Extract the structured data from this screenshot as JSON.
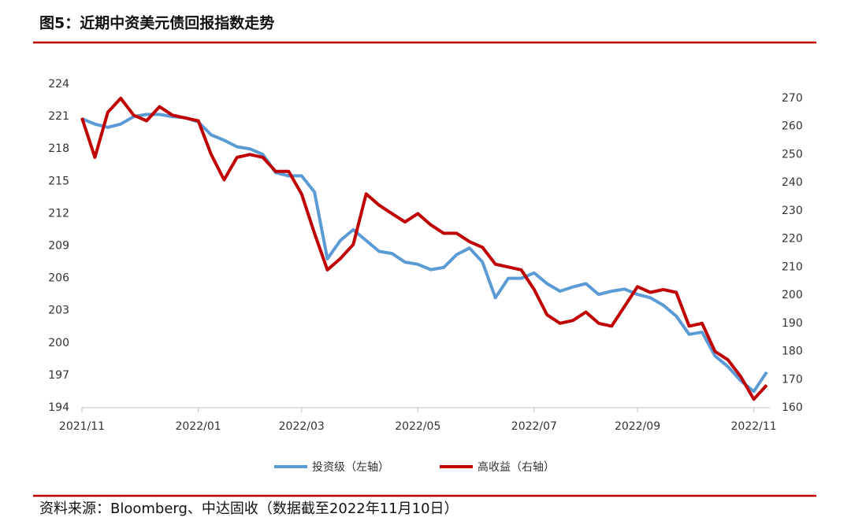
{
  "chart_data": {
    "type": "line",
    "title": "图5：近期中资美元债回报指数走势",
    "source": "资料来源：Bloomberg、中达固收（数据截至2022年11月10日）",
    "categories": [
      "2021/11",
      null,
      null,
      null,
      null,
      null,
      null,
      null,
      null,
      "2022/01",
      null,
      null,
      null,
      null,
      null,
      null,
      null,
      "2022/03",
      null,
      null,
      null,
      null,
      null,
      null,
      null,
      null,
      "2022/05",
      null,
      null,
      null,
      null,
      null,
      null,
      null,
      null,
      "2022/07",
      null,
      null,
      null,
      null,
      null,
      null,
      null,
      "2022/09",
      null,
      null,
      null,
      null,
      null,
      null,
      null,
      null,
      "2022/11",
      null
    ],
    "series": [
      {
        "name": "投资级（左轴）",
        "color": "#5b9bd5",
        "axis": "y",
        "values": [
          220.8,
          220.3,
          220.0,
          220.3,
          221.0,
          221.2,
          221.2,
          221.0,
          220.9,
          220.5,
          219.3,
          218.8,
          218.2,
          218.0,
          217.5,
          215.8,
          215.5,
          215.5,
          214.0,
          207.8,
          209.5,
          210.5,
          209.5,
          208.5,
          208.3,
          207.5,
          207.3,
          206.8,
          207.0,
          208.2,
          208.8,
          207.5,
          204.2,
          206.0,
          206.0,
          206.5,
          205.5,
          204.8,
          205.2,
          205.5,
          204.5,
          204.8,
          205.0,
          204.5,
          204.2,
          203.5,
          202.5,
          200.8,
          201.0,
          198.8,
          197.8,
          196.5,
          195.5,
          197.3
        ]
      },
      {
        "name": "高收益（右轴）",
        "color": "#c00000",
        "axis": "y2",
        "values": [
          263,
          249,
          265,
          270,
          264,
          262,
          267,
          264,
          263,
          262,
          250,
          241,
          249,
          250,
          249,
          244,
          244,
          236,
          222,
          209,
          213,
          218,
          236,
          232,
          229,
          226,
          229,
          225,
          222,
          222,
          219,
          217,
          211,
          210,
          209,
          202,
          193,
          190,
          191,
          194,
          190,
          189,
          196,
          203,
          201,
          202,
          201,
          189,
          190,
          180,
          177,
          171,
          163,
          168
        ]
      }
    ],
    "ylim": [
      194,
      224
    ],
    "yticks": [
      194,
      197,
      200,
      203,
      206,
      209,
      212,
      215,
      218,
      221,
      224
    ],
    "y2lim": [
      160,
      275
    ],
    "y2ticks": [
      160,
      170,
      180,
      190,
      200,
      210,
      220,
      230,
      240,
      250,
      260,
      270
    ],
    "legend": "bottom"
  }
}
